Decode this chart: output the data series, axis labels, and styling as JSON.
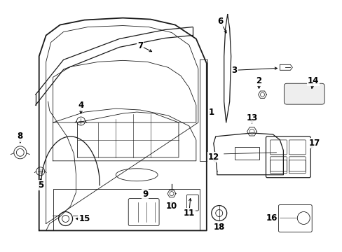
{
  "background_color": "#ffffff",
  "line_color": "#1a1a1a",
  "fig_width": 4.89,
  "fig_height": 3.6,
  "dpi": 100,
  "label_fontsize": 8.5,
  "label_fontweight": "bold"
}
